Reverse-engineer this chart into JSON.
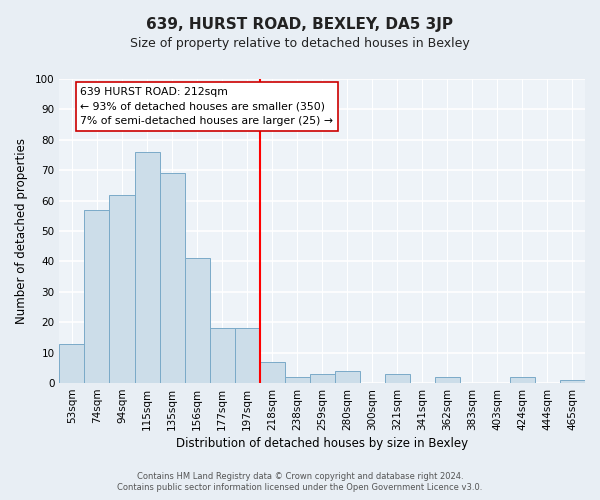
{
  "title": "639, HURST ROAD, BEXLEY, DA5 3JP",
  "subtitle": "Size of property relative to detached houses in Bexley",
  "xlabel": "Distribution of detached houses by size in Bexley",
  "ylabel": "Number of detached properties",
  "bar_labels": [
    "53sqm",
    "74sqm",
    "94sqm",
    "115sqm",
    "135sqm",
    "156sqm",
    "177sqm",
    "197sqm",
    "218sqm",
    "238sqm",
    "259sqm",
    "280sqm",
    "300sqm",
    "321sqm",
    "341sqm",
    "362sqm",
    "383sqm",
    "403sqm",
    "424sqm",
    "444sqm",
    "465sqm"
  ],
  "bar_heights": [
    13,
    57,
    62,
    76,
    69,
    41,
    18,
    18,
    7,
    2,
    3,
    4,
    0,
    3,
    0,
    2,
    0,
    0,
    2,
    0,
    1
  ],
  "bar_color": "#ccdde9",
  "bar_edge_color": "#7aaac8",
  "vline_color": "red",
  "vline_pos": 7.5,
  "annotation_title": "639 HURST ROAD: 212sqm",
  "annotation_line1": "← 93% of detached houses are smaller (350)",
  "annotation_line2": "7% of semi-detached houses are larger (25) →",
  "annotation_box_facecolor": "#ffffff",
  "annotation_box_edgecolor": "#cc0000",
  "ylim": [
    0,
    100
  ],
  "yticks": [
    0,
    10,
    20,
    30,
    40,
    50,
    60,
    70,
    80,
    90,
    100
  ],
  "footer1": "Contains HM Land Registry data © Crown copyright and database right 2024.",
  "footer2": "Contains public sector information licensed under the Open Government Licence v3.0.",
  "bg_color": "#e8eef4",
  "plot_bg_color": "#eef3f8",
  "grid_color": "#ffffff",
  "title_fontsize": 11,
  "subtitle_fontsize": 9,
  "tick_fontsize": 7.5,
  "label_fontsize": 8.5,
  "annotation_fontsize": 7.8,
  "footer_fontsize": 6.0
}
